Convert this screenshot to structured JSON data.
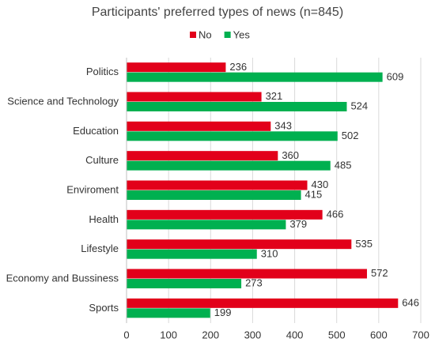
{
  "chart_data": {
    "type": "bar",
    "orientation": "horizontal",
    "title": "Participants' preferred types of news (n=845)",
    "categories": [
      "Politics",
      "Science and Technology",
      "Education",
      "Culture",
      "Enviroment",
      "Health",
      "Lifestyle",
      "Economy and Bussiness",
      "Sports"
    ],
    "series": [
      {
        "name": "No",
        "color": "#e2001a",
        "values": [
          236,
          321,
          343,
          360,
          430,
          466,
          535,
          572,
          646
        ]
      },
      {
        "name": "Yes",
        "color": "#00b050",
        "values": [
          609,
          524,
          502,
          485,
          415,
          379,
          310,
          273,
          199
        ]
      }
    ],
    "xlim": [
      0,
      700
    ],
    "xticks": [
      0,
      100,
      200,
      300,
      400,
      500,
      600,
      700
    ],
    "grid": true,
    "legend": "top",
    "data_labels": true
  }
}
